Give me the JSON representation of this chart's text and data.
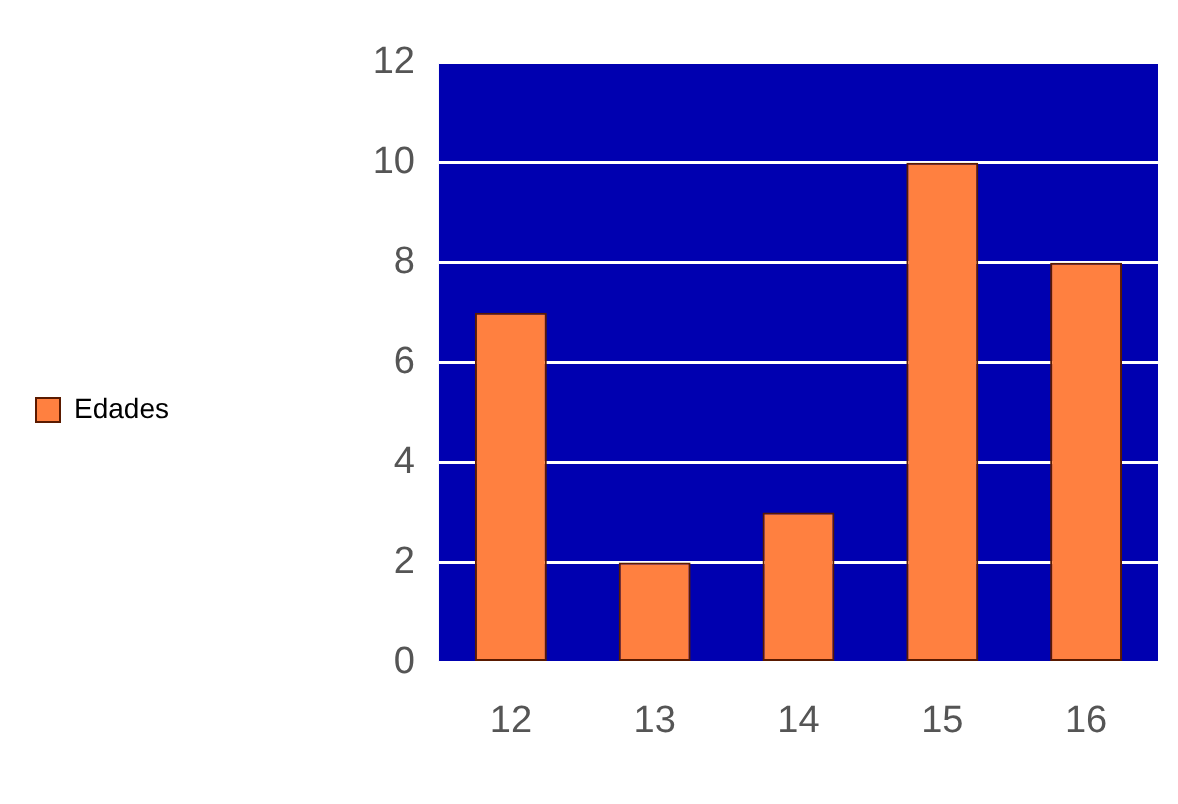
{
  "chart_data": {
    "type": "bar",
    "categories": [
      "12",
      "13",
      "14",
      "15",
      "16"
    ],
    "series": [
      {
        "name": "Edades",
        "color": "#ff8040",
        "values": [
          7,
          2,
          3,
          10,
          8
        ]
      }
    ],
    "ylim": [
      0,
      12
    ],
    "yticks": [
      0,
      2,
      4,
      6,
      8,
      10,
      12
    ],
    "grid": "y",
    "legend": "left"
  }
}
